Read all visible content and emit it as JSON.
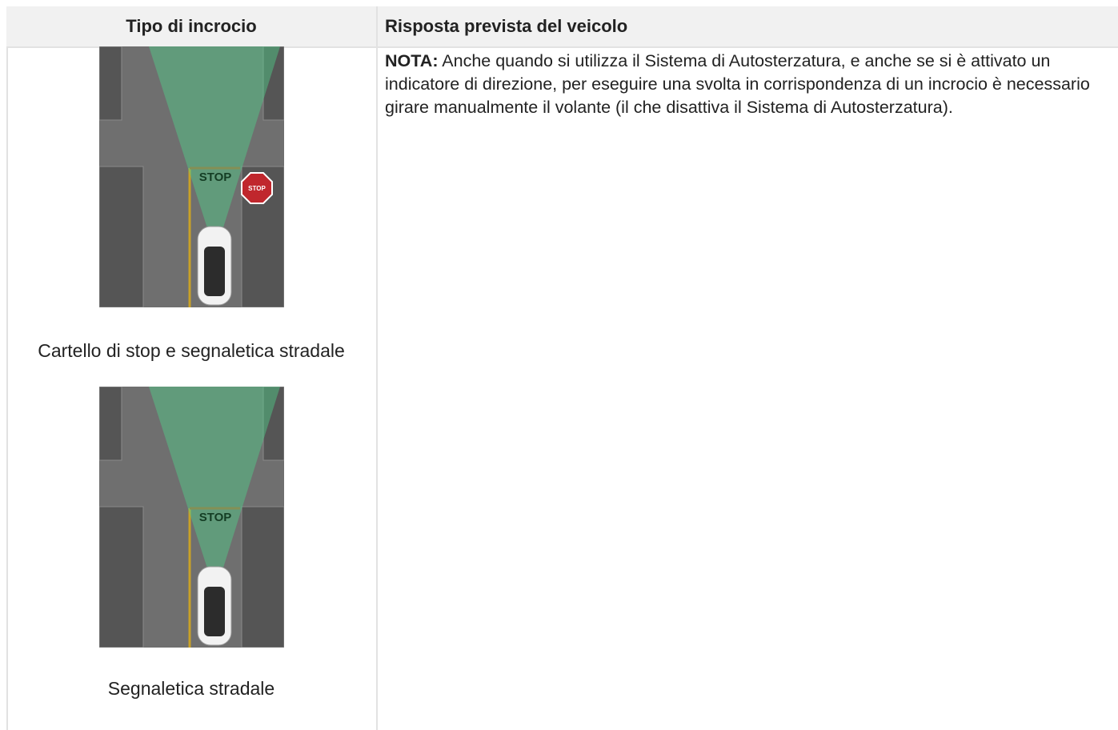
{
  "table": {
    "header": [
      "Tipo di incrocio",
      "Risposta prevista del veicolo"
    ],
    "rows": [
      [
        {
          "items": [
            {
              "road_marking": "STOP",
              "sign": "STOP",
              "caption": "Cartello di stop e segnaletica stradale"
            },
            {
              "road_marking": "STOP",
              "caption": "Segnaletica stradale"
            }
          ]
        },
        {
          "note_label": "NOTA:",
          "note_text": "Anche quando si utilizza il Sistema di Autosterzatura, e anche se si è attivato un indicatore di direzione, per eseguire una svolta in corrispondenza di un incrocio è necessario girare manualmente il volante (il che disattiva il Sistema di Autosterzatura)."
        }
      ]
    ]
  }
}
